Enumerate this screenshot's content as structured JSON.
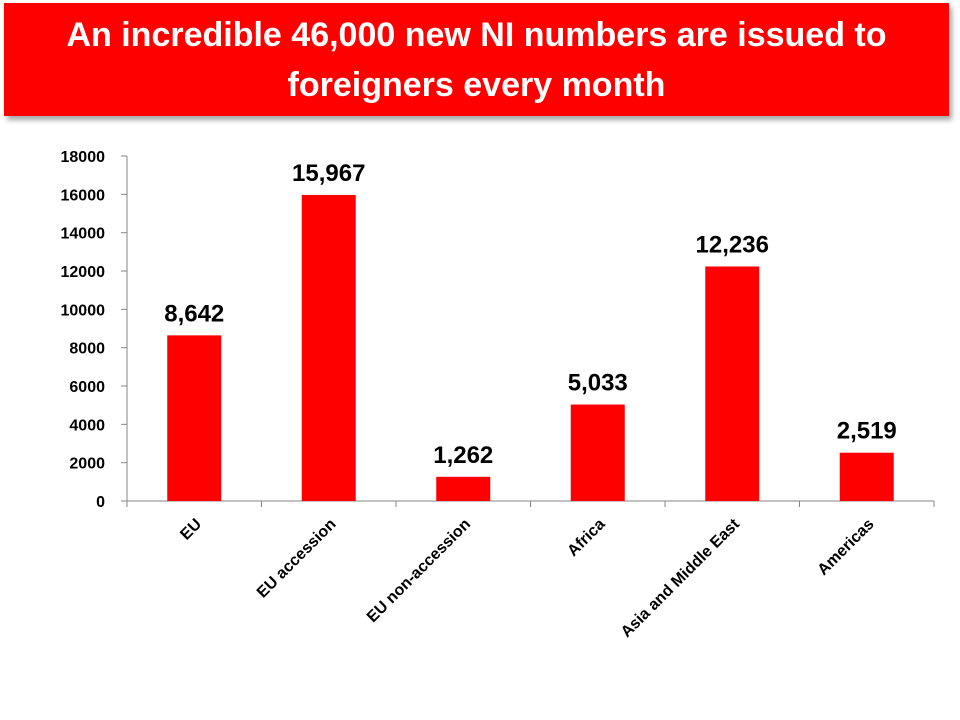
{
  "banner": {
    "title": "An incredible 46,000 new NI numbers are issued to foreigners every month",
    "background": "#ff0000",
    "text_color": "#ffffff"
  },
  "chart_data": {
    "type": "bar",
    "title": "",
    "xlabel": "",
    "ylabel": "",
    "categories": [
      "EU",
      "EU accession",
      "EU non-accession",
      "Africa",
      "Asia and Middle East",
      "Americas"
    ],
    "values": [
      8642,
      15967,
      1262,
      5033,
      12236,
      2519
    ],
    "data_labels": [
      "8,642",
      "15,967",
      "1,262",
      "5,033",
      "12,236",
      "2,519"
    ],
    "ylim": [
      0,
      18000
    ],
    "yticks": [
      0,
      2000,
      4000,
      6000,
      8000,
      10000,
      12000,
      14000,
      16000,
      18000
    ],
    "ytick_labels": [
      "0",
      "2000",
      "4000",
      "6000",
      "8000",
      "10000",
      "12000",
      "14000",
      "16000",
      "18000"
    ],
    "bar_color": "#ff0000",
    "grid": false,
    "legend": "none"
  }
}
